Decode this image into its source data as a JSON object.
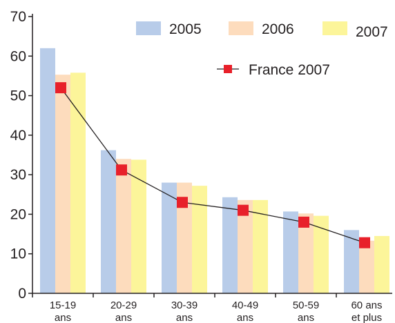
{
  "chart_data": {
    "type": "bar",
    "categories": [
      [
        "15-19",
        "ans"
      ],
      [
        "20-29",
        "ans"
      ],
      [
        "30-39",
        "ans"
      ],
      [
        "40-49",
        "ans"
      ],
      [
        "50-59",
        "ans"
      ],
      [
        "60 ans",
        "et plus"
      ]
    ],
    "series": [
      {
        "name": "2005",
        "values": [
          62,
          36.2,
          28,
          24.3,
          20.7,
          16
        ],
        "color": "#b8cce9"
      },
      {
        "name": "2006",
        "values": [
          55.3,
          34,
          28,
          23.6,
          20.2,
          13.3
        ],
        "color": "#fddcbd"
      },
      {
        "name": "2007",
        "values": [
          55.8,
          33.8,
          27.2,
          23.6,
          19.6,
          14.5
        ],
        "color": "#fcf59a"
      }
    ],
    "line_series": {
      "name": "France 2007",
      "values": [
        52,
        31.2,
        23,
        21,
        18,
        12.8
      ],
      "marker_color": "#e8202a",
      "line_color": "#231f20"
    },
    "ylim": [
      0,
      70
    ],
    "yticks": [
      0,
      10,
      20,
      30,
      40,
      50,
      60,
      70
    ],
    "title": "",
    "xlabel": "",
    "ylabel": "",
    "legend_position": "top",
    "grid": false
  }
}
